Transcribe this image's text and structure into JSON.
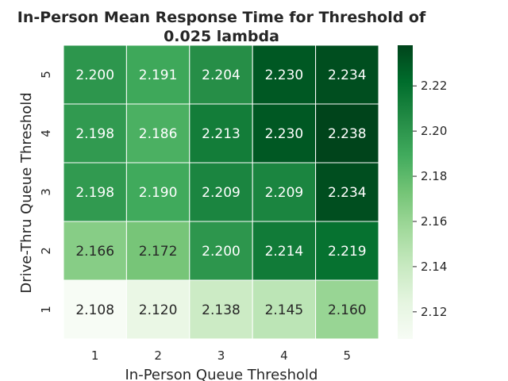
{
  "chart_data": {
    "type": "heatmap",
    "title_line1": "In-Person Mean Response Time for Threshold of",
    "title_line2": "0.025 lambda",
    "xlabel": "In-Person Queue Threshold",
    "ylabel": "Drive-Thru Queue Threshold",
    "x_categories": [
      "1",
      "2",
      "3",
      "4",
      "5"
    ],
    "y_categories": [
      "5",
      "4",
      "3",
      "2",
      "1"
    ],
    "values": [
      [
        2.2,
        2.191,
        2.204,
        2.23,
        2.234
      ],
      [
        2.198,
        2.186,
        2.213,
        2.23,
        2.238
      ],
      [
        2.198,
        2.19,
        2.209,
        2.209,
        2.234
      ],
      [
        2.166,
        2.172,
        2.2,
        2.214,
        2.219
      ],
      [
        2.108,
        2.12,
        2.138,
        2.145,
        2.16
      ]
    ],
    "value_labels": [
      [
        "2.200",
        "2.191",
        "2.204",
        "2.230",
        "2.234"
      ],
      [
        "2.198",
        "2.186",
        "2.213",
        "2.230",
        "2.238"
      ],
      [
        "2.198",
        "2.190",
        "2.209",
        "2.209",
        "2.234"
      ],
      [
        "2.166",
        "2.172",
        "2.200",
        "2.214",
        "2.219"
      ],
      [
        "2.108",
        "2.120",
        "2.138",
        "2.145",
        "2.160"
      ]
    ],
    "colorbar": {
      "min": 2.108,
      "max": 2.238,
      "ticks": [
        2.12,
        2.14,
        2.16,
        2.18,
        2.2,
        2.22
      ],
      "tick_labels": [
        "2.12",
        "2.14",
        "2.16",
        "2.18",
        "2.20",
        "2.22"
      ],
      "colormap": "Greens",
      "colors": [
        "#f7fcf5",
        "#e5f5e0",
        "#c7e9c0",
        "#a1d99b",
        "#74c476",
        "#41ab5d",
        "#238b45",
        "#006d2c",
        "#00441b"
      ]
    },
    "grid": false
  }
}
